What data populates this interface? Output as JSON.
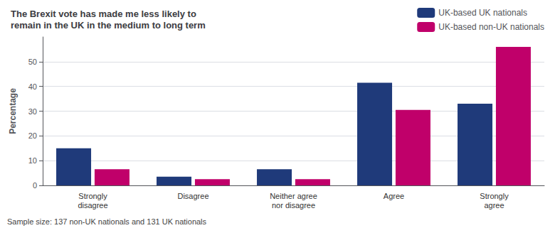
{
  "chart_data": {
    "type": "bar",
    "title": "The Brexit vote has made me less likely to\nremain in the UK in the medium to long term",
    "ylabel": "Percentage",
    "categories": [
      "Strongly\ndisagree",
      "Disagree",
      "Neither agree\nnor disagree",
      "Agree",
      "Strongly\nagree"
    ],
    "series": [
      {
        "name": "UK-based UK nationals",
        "color": "#1f3a7a",
        "values": [
          15,
          3.5,
          6.5,
          41.5,
          33
        ]
      },
      {
        "name": "UK-based non-UK nationals",
        "color": "#c0006a",
        "values": [
          6.5,
          2.5,
          2.5,
          30.5,
          56
        ]
      }
    ],
    "annotations": [
      "Sample size: 137 non-UK nationals and 131 UK nationals"
    ],
    "ylim": [
      0,
      60
    ],
    "yticks": [
      0,
      10,
      20,
      30,
      40,
      50
    ],
    "grid": true,
    "legend": "upper right"
  }
}
